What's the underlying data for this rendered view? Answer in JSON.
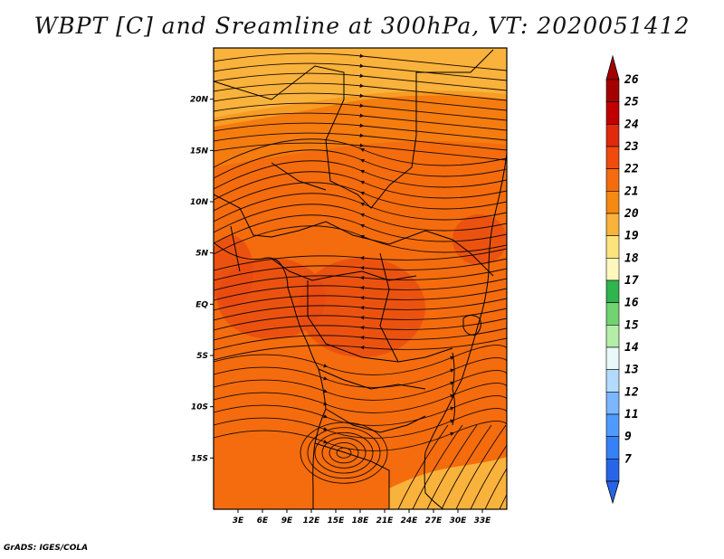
{
  "title": "WBPT [C] and Sreamline at 300hPa, VT: 2020051412",
  "footer": "GrADS: IGES/COLA",
  "map": {
    "lon_range": [
      0,
      36
    ],
    "lat_range": [
      -20,
      25
    ],
    "lat_ticks": [
      {
        "value": 20,
        "label": "20N"
      },
      {
        "value": 15,
        "label": "15N"
      },
      {
        "value": 10,
        "label": "10N"
      },
      {
        "value": 5,
        "label": "5N"
      },
      {
        "value": 0,
        "label": "EQ"
      },
      {
        "value": -5,
        "label": "5S"
      },
      {
        "value": -10,
        "label": "10S"
      },
      {
        "value": -15,
        "label": "15S"
      }
    ],
    "lon_ticks": [
      {
        "value": 3,
        "label": "3E"
      },
      {
        "value": 6,
        "label": "6E"
      },
      {
        "value": 9,
        "label": "9E"
      },
      {
        "value": 12,
        "label": "12E"
      },
      {
        "value": 15,
        "label": "15E"
      },
      {
        "value": 18,
        "label": "18E"
      },
      {
        "value": 21,
        "label": "21E"
      },
      {
        "value": 24,
        "label": "24E"
      },
      {
        "value": 27,
        "label": "27E"
      },
      {
        "value": 30,
        "label": "30E"
      },
      {
        "value": 33,
        "label": "33E"
      }
    ],
    "colors": {
      "background": "#f46c0d",
      "lighter": "#f58a12",
      "yellowish": "#f9b23b",
      "darker": "#e84a12",
      "streamline": "#1a0a00"
    }
  },
  "colorbar": {
    "levels": [
      "26",
      "25",
      "24",
      "23",
      "22",
      "21",
      "20",
      "19",
      "18",
      "17",
      "16",
      "15",
      "14",
      "13",
      "12",
      "11",
      "9",
      "7"
    ],
    "colors": [
      "#a50000",
      "#c00000",
      "#e12a0c",
      "#f04a0d",
      "#f46c0d",
      "#f58a12",
      "#f9b23b",
      "#fde37b",
      "#fef8bd",
      "#2fb44e",
      "#72d371",
      "#b4eda7",
      "#e9f9f9",
      "#b3dbff",
      "#7bb6ff",
      "#4f9bfd",
      "#3681f5",
      "#2864e8"
    ]
  }
}
